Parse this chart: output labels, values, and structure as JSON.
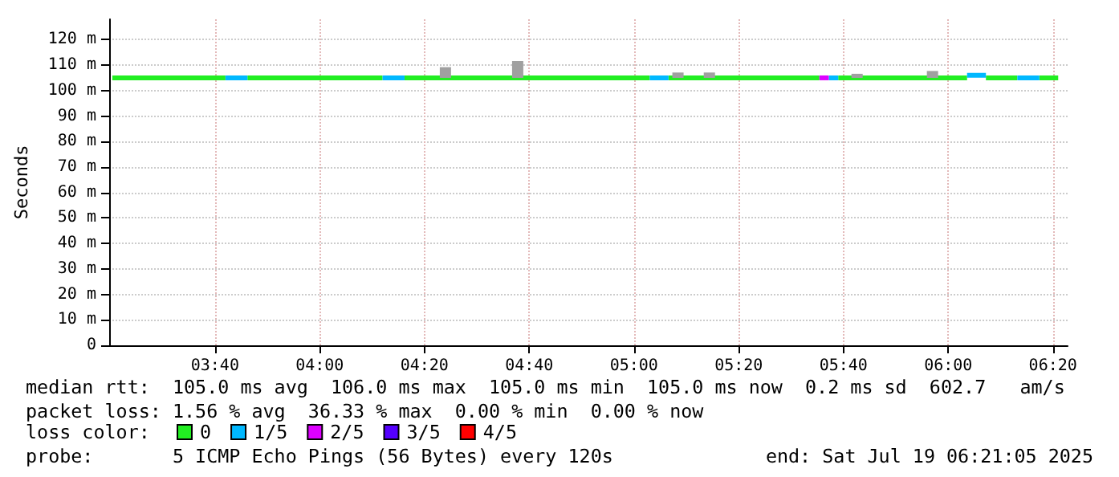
{
  "chart_data": {
    "type": "line",
    "ylabel": "Seconds",
    "legend_title": "loss color:",
    "legend": "bottom left",
    "grid": true,
    "marker": "none",
    "line_style": "solid",
    "xlim": [
      3.33,
      6.38
    ],
    "xticks": [
      {
        "value": 3.6667,
        "label": "03:40"
      },
      {
        "value": 4,
        "label": "04:00"
      },
      {
        "value": 4.3333,
        "label": "04:20"
      },
      {
        "value": 4.6667,
        "label": "04:40"
      },
      {
        "value": 5,
        "label": "05:00"
      },
      {
        "value": 5.3333,
        "label": "05:20"
      },
      {
        "value": 5.6667,
        "label": "05:40"
      },
      {
        "value": 6,
        "label": "06:00"
      },
      {
        "value": 6.3333,
        "label": "06:20"
      }
    ],
    "ylim": [
      0,
      128
    ],
    "yticks": [
      0,
      {
        "value": 10,
        "label": "10 m"
      },
      {
        "value": 20,
        "label": "20 m"
      },
      {
        "value": 30,
        "label": "30 m"
      },
      {
        "value": 40,
        "label": "40 m"
      },
      {
        "value": 50,
        "label": "50 m"
      },
      {
        "value": 60,
        "label": "60 m"
      },
      {
        "value": 70,
        "label": "70 m"
      },
      {
        "value": 80,
        "label": "80 m"
      },
      {
        "value": 90,
        "label": "90 m"
      },
      {
        "value": 100,
        "label": "100 m"
      },
      {
        "value": 110,
        "label": "110 m"
      },
      {
        "value": 120,
        "label": "120 m"
      }
    ],
    "series": [
      {
        "type": "bar",
        "color": "#a0a0a0",
        "x": [
          4.4,
          4.63,
          5.14,
          5.24,
          5.71,
          5.95
        ],
        "base": [
          105,
          105,
          105,
          105,
          105,
          105
        ],
        "values": [
          4.2,
          6.6,
          2.1,
          2.1,
          1.6,
          2.7
        ]
      },
      {
        "name": "0",
        "color": "#22ee22",
        "x": [
          3.34,
          3.7,
          3.705,
          3.77,
          4.2,
          4.205,
          4.27,
          5.05,
          5.055,
          5.11,
          5.59,
          5.6,
          5.65,
          6.06,
          6.065,
          6.12,
          6.22,
          6.225,
          6.29,
          6.35
        ],
        "values": [
          105,
          105,
          null,
          105,
          105,
          null,
          105,
          105,
          null,
          105,
          105,
          null,
          105,
          105,
          null,
          105,
          105,
          null,
          105,
          105
        ]
      },
      {
        "name": "1/5",
        "color": "#00b8ff",
        "x": [
          3.7,
          3.77,
          3.775,
          4.2,
          4.27,
          4.275,
          5.05,
          5.11,
          5.115,
          5.62,
          5.65,
          5.655,
          6.06,
          6.12,
          6.125,
          6.22,
          6.29
        ],
        "values": [
          105,
          105,
          null,
          105,
          105,
          null,
          105,
          105,
          null,
          105,
          105,
          null,
          106,
          106,
          null,
          105,
          105
        ]
      },
      {
        "name": "2/5",
        "color": "#dd00ff",
        "x": [
          5.59,
          5.62
        ],
        "values": [
          105,
          105
        ]
      },
      {
        "name": "3/5",
        "color": "#5500ff"
      },
      {
        "name": "4/5",
        "color": "#ff0000"
      }
    ],
    "annotations": [
      "median rtt:  105.0 ms avg  106.0 ms max  105.0 ms min  105.0 ms now  0.2 ms sd  602.7   am/s",
      "packet loss: 1.56 % avg  36.33 % max  0.00 % min  0.00 % now",
      "probe:       5 ICMP Echo Pings (56 Bytes) every 120s",
      "end: Sat Jul 19 06:21:05 2025"
    ]
  }
}
